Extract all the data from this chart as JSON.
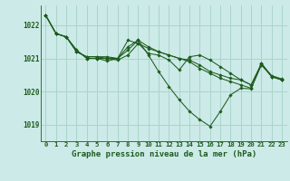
{
  "background_color": "#cceae7",
  "grid_color": "#aad4cc",
  "line_color": "#1e5c1e",
  "title": "Graphe pression niveau de la mer (hPa)",
  "xlim": [
    -0.5,
    23.5
  ],
  "ylim": [
    1018.5,
    1022.6
  ],
  "yticks": [
    1019,
    1020,
    1021,
    1022
  ],
  "xtick_labels": [
    "0",
    "1",
    "2",
    "3",
    "4",
    "5",
    "6",
    "7",
    "8",
    "9",
    "10",
    "11",
    "12",
    "13",
    "14",
    "15",
    "16",
    "17",
    "18",
    "19",
    "20",
    "21",
    "22",
    "23"
  ],
  "series": [
    [
      1022.3,
      1021.75,
      1021.65,
      1021.2,
      1021.05,
      1021.05,
      1021.0,
      1020.95,
      1021.1,
      1021.45,
      1021.3,
      1021.2,
      1021.1,
      1021.0,
      1020.9,
      1020.7,
      1020.55,
      1020.4,
      1020.3,
      1020.2,
      1020.1,
      1020.8,
      1020.45,
      1020.35
    ],
    [
      1022.3,
      1021.75,
      1021.65,
      1021.25,
      1021.0,
      1021.0,
      1020.92,
      1021.0,
      1021.55,
      1021.45,
      1021.15,
      1021.1,
      1020.95,
      1020.65,
      1021.05,
      1021.1,
      1020.95,
      1020.75,
      1020.55,
      1020.35,
      1020.2,
      1020.85,
      1020.45,
      1020.35
    ],
    [
      1022.3,
      1021.75,
      1021.65,
      1021.25,
      1021.0,
      1021.0,
      1021.0,
      1021.0,
      1021.35,
      1021.55,
      1021.1,
      1020.6,
      1020.15,
      1019.75,
      1019.4,
      1019.15,
      1018.95,
      1019.4,
      1019.9,
      1020.1,
      1020.08,
      1020.85,
      1020.45,
      1020.35
    ],
    [
      1022.3,
      1021.75,
      1021.65,
      1021.2,
      1021.05,
      1021.05,
      1021.05,
      1021.0,
      1021.25,
      1021.55,
      1021.35,
      1021.2,
      1021.1,
      1021.0,
      1020.95,
      1020.8,
      1020.6,
      1020.5,
      1020.4,
      1020.35,
      1020.2,
      1020.82,
      1020.48,
      1020.38
    ]
  ]
}
